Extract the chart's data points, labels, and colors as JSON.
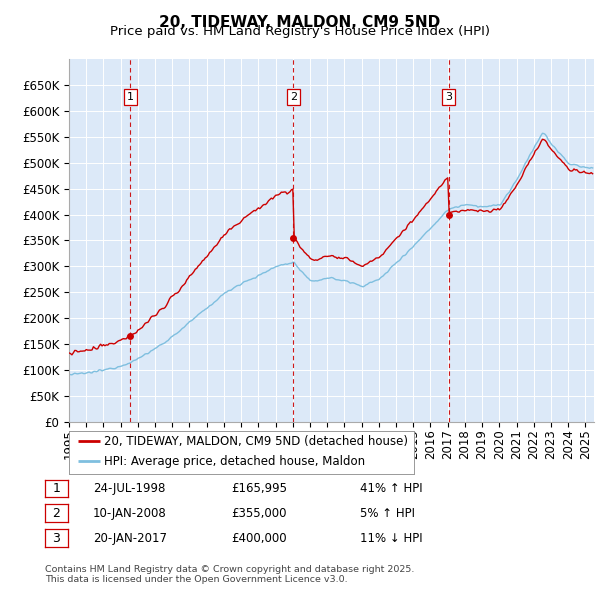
{
  "title": "20, TIDEWAY, MALDON, CM9 5ND",
  "subtitle": "Price paid vs. HM Land Registry's House Price Index (HPI)",
  "ylim": [
    0,
    700000
  ],
  "yticks": [
    0,
    50000,
    100000,
    150000,
    200000,
    250000,
    300000,
    350000,
    400000,
    450000,
    500000,
    550000,
    600000,
    650000
  ],
  "ytick_labels": [
    "£0",
    "£50K",
    "£100K",
    "£150K",
    "£200K",
    "£250K",
    "£300K",
    "£350K",
    "£400K",
    "£450K",
    "£500K",
    "£550K",
    "£600K",
    "£650K"
  ],
  "xlim_start": 1995.0,
  "xlim_end": 2025.5,
  "xticks": [
    1995,
    1996,
    1997,
    1998,
    1999,
    2000,
    2001,
    2002,
    2003,
    2004,
    2005,
    2006,
    2007,
    2008,
    2009,
    2010,
    2011,
    2012,
    2013,
    2014,
    2015,
    2016,
    2017,
    2018,
    2019,
    2020,
    2021,
    2022,
    2023,
    2024,
    2025
  ],
  "background_color": "#ffffff",
  "plot_bg_color": "#dce9f8",
  "grid_color": "#ffffff",
  "hpi_line_color": "#7fbfdf",
  "price_line_color": "#cc0000",
  "sale_marker_color": "#cc0000",
  "vline_color": "#cc0000",
  "annotation_border_color": "#cc0000",
  "sales": [
    {
      "date_year": 1998.56,
      "price": 165995,
      "label": "1"
    },
    {
      "date_year": 2008.03,
      "price": 355000,
      "label": "2"
    },
    {
      "date_year": 2017.05,
      "price": 400000,
      "label": "3"
    }
  ],
  "sale_details": [
    {
      "label": "1",
      "date": "24-JUL-1998",
      "price": "£165,995",
      "change": "41% ↑ HPI"
    },
    {
      "label": "2",
      "date": "10-JAN-2008",
      "price": "£355,000",
      "change": "5% ↑ HPI"
    },
    {
      "label": "3",
      "date": "20-JAN-2017",
      "price": "£400,000",
      "change": "11% ↓ HPI"
    }
  ],
  "legend_entries": [
    {
      "label": "20, TIDEWAY, MALDON, CM9 5ND (detached house)",
      "color": "#cc0000"
    },
    {
      "label": "HPI: Average price, detached house, Maldon",
      "color": "#7fbfdf"
    }
  ],
  "footnote": "Contains HM Land Registry data © Crown copyright and database right 2025.\nThis data is licensed under the Open Government Licence v3.0.",
  "hpi_anchors_years": [
    1995.0,
    1996.0,
    1997.0,
    1998.0,
    1999.0,
    2000.0,
    2001.0,
    2002.0,
    2003.0,
    2004.0,
    2005.0,
    2006.0,
    2007.0,
    2008.0,
    2009.0,
    2010.0,
    2011.0,
    2012.0,
    2013.0,
    2014.0,
    2015.0,
    2016.0,
    2017.0,
    2018.0,
    2019.0,
    2020.0,
    2021.0,
    2022.0,
    2022.5,
    2023.0,
    2024.0,
    2025.0
  ],
  "hpi_anchors_vals": [
    91000,
    94000,
    100000,
    108000,
    122000,
    142000,
    165000,
    193000,
    220000,
    248000,
    268000,
    282000,
    300000,
    308000,
    270000,
    278000,
    272000,
    262000,
    275000,
    308000,
    340000,
    375000,
    410000,
    420000,
    415000,
    418000,
    468000,
    530000,
    560000,
    535000,
    498000,
    490000
  ],
  "sale1_year": 1998.56,
  "sale1_price": 165995,
  "sale2_year": 2008.03,
  "sale2_price": 355000,
  "sale3_year": 2017.05,
  "sale3_price": 400000
}
